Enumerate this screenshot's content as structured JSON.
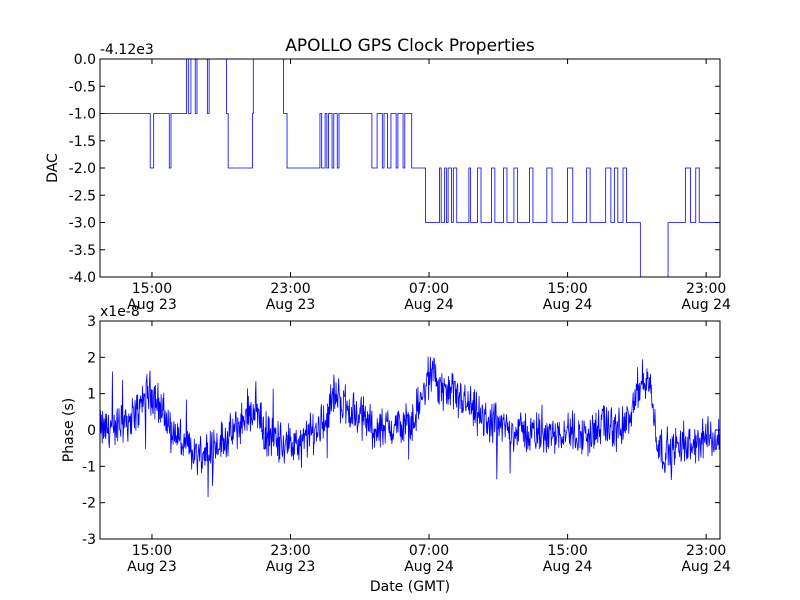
{
  "chart_data": [
    {
      "type": "line",
      "title": "APOLLO GPS Clock Properties",
      "xlabel": "",
      "ylabel": "DAC",
      "offset_text": "-4.12e3",
      "ylim": [
        -4.0,
        0.0
      ],
      "yticks": [
        "0.0",
        "-0.5",
        "-1.0",
        "-1.5",
        "-2.0",
        "-2.5",
        "-3.0",
        "-3.5",
        "-4.0"
      ],
      "ytick_values": [
        0.0,
        -0.5,
        -1.0,
        -1.5,
        -2.0,
        -2.5,
        -3.0,
        -3.5,
        -4.0
      ],
      "xlim_hours": [
        12.0,
        47.8
      ],
      "xtick_hours": [
        15,
        23,
        31,
        39,
        47
      ],
      "xticks": [
        {
          "time": "15:00",
          "date": "Aug 23"
        },
        {
          "time": "23:00",
          "date": "Aug 23"
        },
        {
          "time": "07:00",
          "date": "Aug 24"
        },
        {
          "time": "15:00",
          "date": "Aug 24"
        },
        {
          "time": "23:00",
          "date": "Aug 24"
        }
      ],
      "series": [
        {
          "name": "DAC",
          "x": [
            12.0,
            14.9,
            14.9,
            15.1,
            15.1,
            16.0,
            16.0,
            16.1,
            16.1,
            17.0,
            17.0,
            17.1,
            17.1,
            17.25,
            17.25,
            17.5,
            17.5,
            17.6,
            17.6,
            18.2,
            18.2,
            18.3,
            18.3,
            19.3,
            19.3,
            19.4,
            19.4,
            20.8,
            20.8,
            20.85,
            20.85,
            22.6,
            22.6,
            22.8,
            22.8,
            24.7,
            24.7,
            24.8,
            24.8,
            25.0,
            25.0,
            25.1,
            25.1,
            25.2,
            25.2,
            25.4,
            25.4,
            25.5,
            25.5,
            25.7,
            25.7,
            25.8,
            25.8,
            27.7,
            27.7,
            28.0,
            28.0,
            28.3,
            28.3,
            28.4,
            28.4,
            28.6,
            28.6,
            28.8,
            28.8,
            29.1,
            29.1,
            29.2,
            29.2,
            29.5,
            29.5,
            29.6,
            29.6,
            30.0,
            30.0,
            30.8,
            30.8,
            31.6,
            31.6,
            31.7,
            31.7,
            31.9,
            31.9,
            32.0,
            32.0,
            32.1,
            32.1,
            32.3,
            32.3,
            32.4,
            32.4,
            32.6,
            32.6,
            33.3,
            33.3,
            33.4,
            33.4,
            33.8,
            33.8,
            34.0,
            34.0,
            34.6,
            34.6,
            34.8,
            34.8,
            35.3,
            35.3,
            35.5,
            35.5,
            35.9,
            35.9,
            36.1,
            36.1,
            36.8,
            36.8,
            37.0,
            37.0,
            37.8,
            37.8,
            38.1,
            38.1,
            39.0,
            39.0,
            39.3,
            39.3,
            40.1,
            40.1,
            40.3,
            40.3,
            41.2,
            41.2,
            41.5,
            41.5,
            41.7,
            41.7,
            41.9,
            41.9,
            42.2,
            42.2,
            42.4,
            42.4,
            43.2,
            43.2,
            44.8,
            44.8,
            45.8,
            45.8,
            46.1,
            46.1,
            46.4,
            46.4,
            46.6,
            46.6,
            47.8
          ],
          "values": [
            -1.0,
            -1.0,
            -2.0,
            -2.0,
            -1.0,
            -1.0,
            -2.0,
            -2.0,
            -1.0,
            -1.0,
            0.0,
            0.0,
            -1.0,
            -1.0,
            0.0,
            0.0,
            -1.0,
            -1.0,
            0.0,
            0.0,
            -1.0,
            -1.0,
            0.0,
            0.0,
            -1.0,
            -1.0,
            -2.0,
            -2.0,
            -1.0,
            -1.0,
            0.0,
            0.0,
            -1.0,
            -1.0,
            -2.0,
            -2.0,
            -1.0,
            -1.0,
            -2.0,
            -2.0,
            -1.0,
            -1.0,
            -2.0,
            -2.0,
            -1.0,
            -1.0,
            -2.0,
            -2.0,
            -1.0,
            -1.0,
            -2.0,
            -2.0,
            -1.0,
            -1.0,
            -2.0,
            -2.0,
            -1.0,
            -1.0,
            -2.0,
            -2.0,
            -1.0,
            -1.0,
            -2.0,
            -2.0,
            -1.0,
            -1.0,
            -2.0,
            -2.0,
            -1.0,
            -1.0,
            -2.0,
            -2.0,
            -1.0,
            -1.0,
            -2.0,
            -2.0,
            -3.0,
            -3.0,
            -2.0,
            -2.0,
            -3.0,
            -3.0,
            -2.0,
            -2.0,
            -3.0,
            -3.0,
            -2.0,
            -2.0,
            -3.0,
            -3.0,
            -2.0,
            -2.0,
            -3.0,
            -3.0,
            -2.0,
            -2.0,
            -3.0,
            -3.0,
            -2.0,
            -2.0,
            -3.0,
            -3.0,
            -2.0,
            -2.0,
            -3.0,
            -3.0,
            -2.0,
            -2.0,
            -3.0,
            -3.0,
            -2.0,
            -2.0,
            -3.0,
            -3.0,
            -2.0,
            -2.0,
            -3.0,
            -3.0,
            -2.0,
            -2.0,
            -3.0,
            -3.0,
            -2.0,
            -2.0,
            -3.0,
            -3.0,
            -2.0,
            -2.0,
            -3.0,
            -3.0,
            -2.0,
            -2.0,
            -3.0,
            -3.0,
            -2.0,
            -2.0,
            -3.0,
            -3.0,
            -2.0,
            -2.0,
            -3.0,
            -3.0,
            -4.0,
            -4.0,
            -3.0,
            -3.0,
            -2.0,
            -2.0,
            -3.0,
            -3.0,
            -2.0,
            -2.0,
            -3.0,
            -3.0
          ]
        }
      ]
    },
    {
      "type": "line",
      "title": "",
      "xlabel": "Date (GMT)",
      "ylabel": "Phase (s)",
      "offset_text": "x1e-8",
      "ylim": [
        -3,
        3
      ],
      "yticks": [
        "3",
        "2",
        "1",
        "0",
        "-1",
        "-2",
        "-3"
      ],
      "ytick_values": [
        3,
        2,
        1,
        0,
        -1,
        -2,
        -3
      ],
      "xlim_hours": [
        12.0,
        47.8
      ],
      "xtick_hours": [
        15,
        23,
        31,
        39,
        47
      ],
      "xticks": [
        {
          "time": "15:00",
          "date": "Aug 23"
        },
        {
          "time": "23:00",
          "date": "Aug 23"
        },
        {
          "time": "07:00",
          "date": "Aug 24"
        },
        {
          "time": "15:00",
          "date": "Aug 24"
        },
        {
          "time": "23:00",
          "date": "Aug 24"
        }
      ],
      "series": [
        {
          "name": "Phase",
          "x": [
            12.0,
            13.0,
            14.0,
            14.8,
            15.2,
            16.0,
            17.0,
            17.7,
            18.5,
            19.5,
            20.5,
            21.0,
            21.5,
            22.5,
            23.5,
            24.2,
            24.8,
            25.5,
            26.5,
            27.3,
            28.0,
            29.0,
            30.0,
            30.6,
            31.2,
            32.0,
            33.0,
            34.0,
            35.0,
            36.0,
            37.0,
            38.0,
            39.0,
            40.0,
            41.0,
            42.0,
            42.8,
            43.2,
            43.7,
            44.2,
            44.5,
            45.0,
            46.0,
            47.0,
            47.8
          ],
          "values": [
            0.0,
            0.1,
            0.4,
            1.1,
            0.9,
            0.1,
            -0.5,
            -0.7,
            -0.4,
            -0.2,
            0.4,
            0.7,
            -0.1,
            -0.3,
            -0.5,
            -0.1,
            0.1,
            1.0,
            0.5,
            0.3,
            0.0,
            0.1,
            0.2,
            0.9,
            1.5,
            1.0,
            0.8,
            0.3,
            0.1,
            0.0,
            -0.1,
            -0.1,
            0.0,
            -0.2,
            0.1,
            0.0,
            0.5,
            1.3,
            1.4,
            -0.3,
            -0.6,
            -0.5,
            -0.5,
            -0.2,
            -0.3
          ]
        }
      ]
    }
  ]
}
